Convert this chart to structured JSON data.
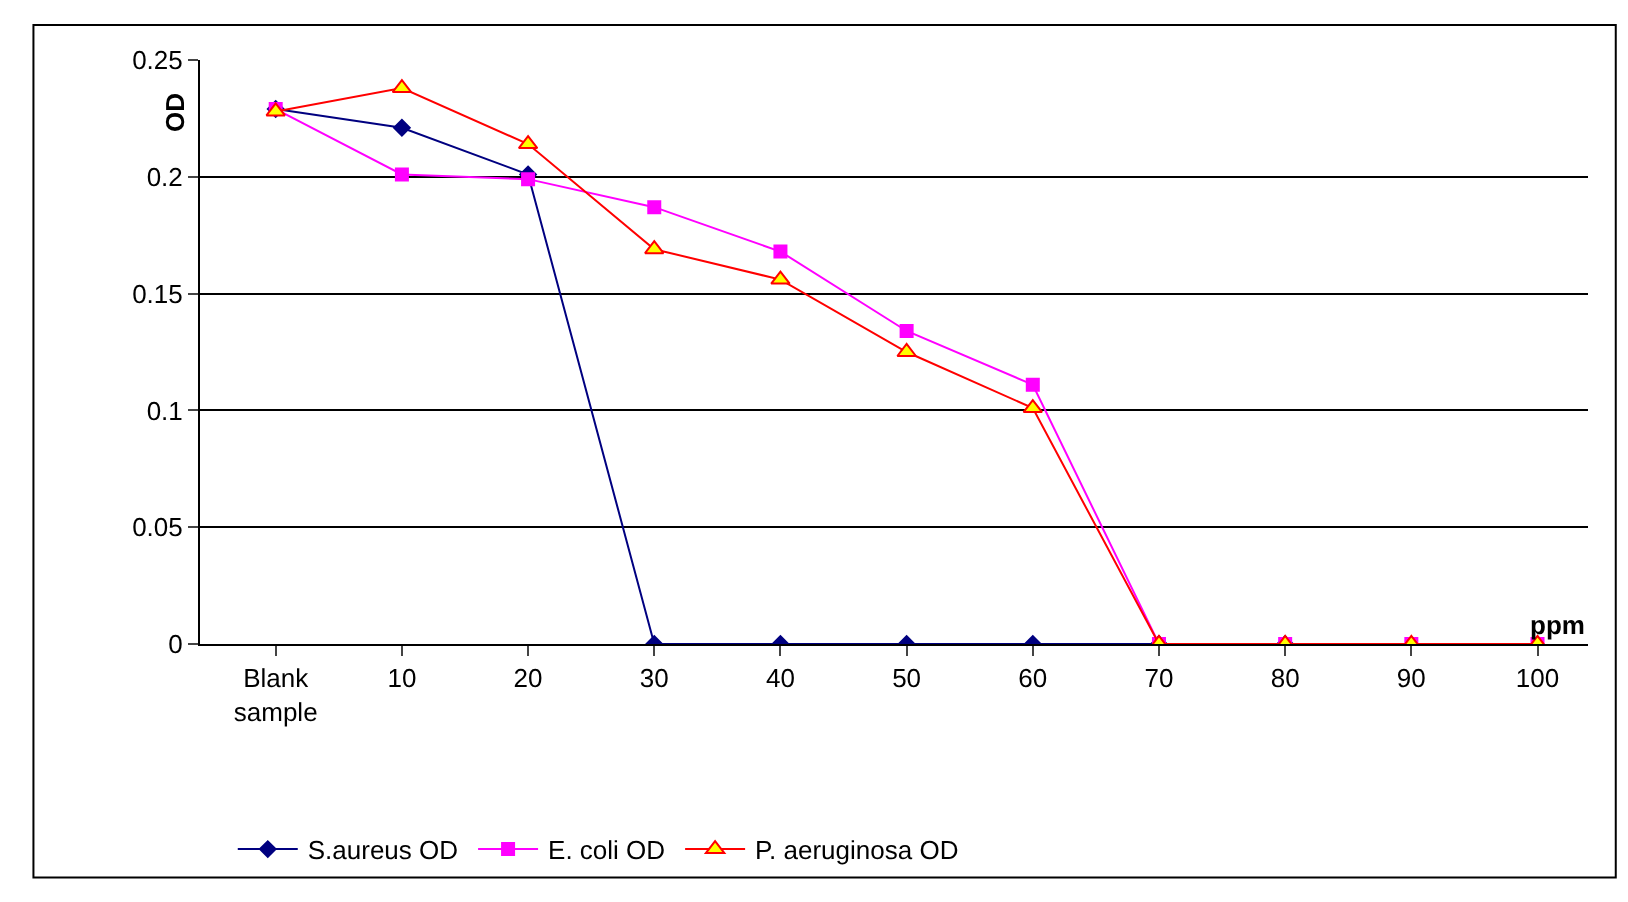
{
  "chart_data": {
    "type": "line",
    "xlabel": "ppm",
    "ylabel": "OD",
    "categories": [
      "Blank sample",
      "10",
      "20",
      "30",
      "40",
      "50",
      "60",
      "70",
      "80",
      "90",
      "100"
    ],
    "series": [
      {
        "name": "S.aureus OD",
        "color": "#000080",
        "marker": "diamond",
        "values": [
          0.229,
          0.221,
          0.201,
          0,
          0,
          0,
          0,
          0,
          0,
          null,
          null
        ]
      },
      {
        "name": "E. coli OD",
        "color": "#ff00ff",
        "marker": "square",
        "values": [
          0.229,
          0.201,
          0.199,
          0.187,
          0.168,
          0.134,
          0.111,
          0,
          0,
          0,
          0
        ]
      },
      {
        "name": "P. aeruginosa OD",
        "color": "#ff0000",
        "marker": "triangle",
        "values": [
          0.228,
          0.238,
          0.214,
          0.169,
          0.156,
          0.125,
          0.101,
          0,
          0,
          0,
          0
        ]
      }
    ],
    "ylim": [
      0,
      0.25
    ],
    "yticks": [
      0,
      0.05,
      0.1,
      0.15,
      0.2,
      0.25
    ],
    "grid": "y",
    "legend": "bottom"
  }
}
